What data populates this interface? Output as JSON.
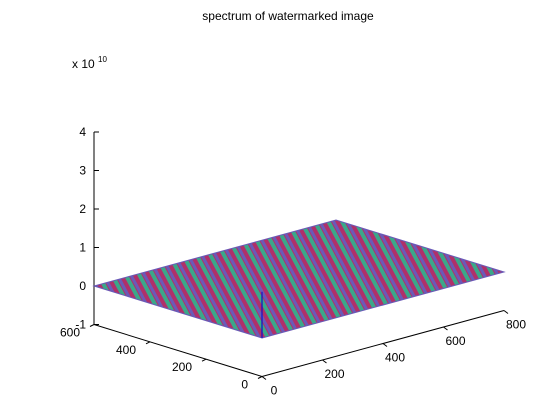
{
  "chart_data": {
    "type": "surface",
    "title": "spectrum of watermarked image",
    "z_exponent_base": "x 10",
    "z_exponent": "10",
    "x_range": [
      0,
      800
    ],
    "y_range": [
      0,
      600
    ],
    "z_range": [
      -1,
      4
    ],
    "x_ticks": [
      "0",
      "200",
      "400",
      "600",
      "800"
    ],
    "y_ticks": [
      "0",
      "200",
      "400",
      "600"
    ],
    "z_ticks": [
      "-1",
      "0",
      "1",
      "2",
      "3",
      "4"
    ],
    "grid": false,
    "surface_level": 0,
    "spike": {
      "x": 0,
      "y": 0,
      "z": 1.2
    },
    "colors": {
      "surface_stripe_a": "#b0306a",
      "surface_stripe_b": "#3aa88a",
      "surface_stripe_c": "#6a5ab8",
      "spike": "#1010c8",
      "axis": "#000000"
    }
  }
}
